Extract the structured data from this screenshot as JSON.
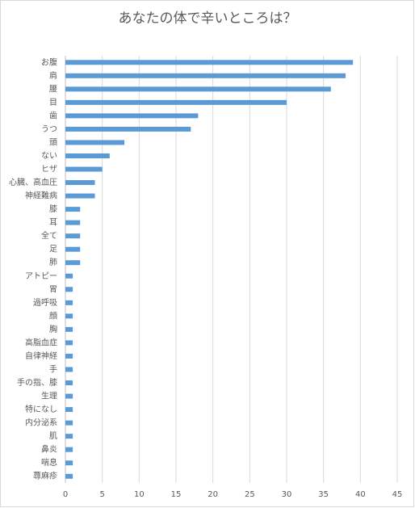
{
  "chart_data": {
    "type": "hbar",
    "title": "あなたの体で辛いところは？",
    "categories": [
      "お腹",
      "肩",
      "腰",
      "目",
      "歯",
      "うつ",
      "頭",
      "ない",
      "ヒザ",
      "心臓、高血圧",
      "神経難病",
      "膝",
      "耳",
      "全て",
      "足",
      "肺",
      "アトピー",
      "胃",
      "過呼吸",
      "顔",
      "胸",
      "高脂血症",
      "自律神経",
      "手",
      "手の指、膝",
      "生理",
      "特になし",
      "内分泌系",
      "肌",
      "鼻炎",
      "喘息",
      "蕁麻疹"
    ],
    "values": [
      39,
      38,
      36,
      30,
      18,
      17,
      8,
      6,
      5,
      4,
      4,
      2,
      2,
      2,
      2,
      2,
      1,
      1,
      1,
      1,
      1,
      1,
      1,
      1,
      1,
      1,
      1,
      1,
      1,
      1,
      1,
      1
    ],
    "color": "#5b9bd5",
    "xlim": [
      0,
      45
    ],
    "xticks": [
      0,
      5,
      10,
      15,
      20,
      25,
      30,
      35,
      40,
      45
    ],
    "grid": true
  }
}
